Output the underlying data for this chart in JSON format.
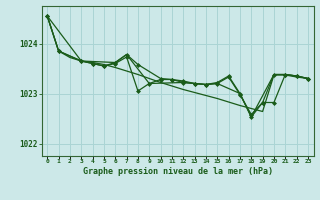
{
  "title": "Graphe pression niveau de la mer (hPa)",
  "bg_color": "#cce8e8",
  "grid_color": "#aad4d4",
  "line_color": "#1a5c1a",
  "marker_color": "#1a5c1a",
  "frame_color": "#336633",
  "xlim": [
    -0.5,
    23.5
  ],
  "ylim": [
    1021.75,
    1024.75
  ],
  "yticks": [
    1022,
    1023,
    1024
  ],
  "xtick_labels": [
    "0",
    "1",
    "2",
    "3",
    "4",
    "5",
    "6",
    "7",
    "8",
    "9",
    "10",
    "11",
    "12",
    "13",
    "14",
    "15",
    "16",
    "17",
    "18",
    "19",
    "20",
    "21",
    "22",
    "23"
  ],
  "series": {
    "line1_x": [
      0,
      1,
      2,
      3,
      4,
      5,
      6,
      7,
      8,
      9,
      10,
      11,
      12,
      13,
      14,
      15,
      16,
      17,
      18,
      19,
      20,
      21,
      22,
      23
    ],
    "line1_y": [
      1024.55,
      1023.85,
      1023.72,
      1023.65,
      1023.62,
      1023.58,
      1023.52,
      1023.45,
      1023.38,
      1023.3,
      1023.22,
      1023.15,
      1023.08,
      1023.02,
      1022.96,
      1022.9,
      1022.83,
      1022.76,
      1022.7,
      1022.64,
      1023.37,
      1023.37,
      1023.33,
      1023.3
    ],
    "line2_x": [
      0,
      1,
      3,
      4,
      5,
      6,
      7,
      8,
      9,
      10,
      11,
      12,
      13,
      14,
      15,
      16,
      17,
      18,
      19,
      20,
      21,
      22,
      23
    ],
    "line2_y": [
      1024.55,
      1023.85,
      1023.65,
      1023.6,
      1023.55,
      1023.6,
      1023.73,
      1023.05,
      1023.2,
      1023.28,
      1023.28,
      1023.22,
      1023.2,
      1023.18,
      1023.2,
      1023.33,
      1022.98,
      1022.58,
      1022.82,
      1022.82,
      1023.38,
      1023.35,
      1023.3
    ],
    "line3_x": [
      0,
      1,
      3,
      4,
      5,
      6,
      7,
      8,
      10,
      11,
      12,
      13,
      14,
      15,
      16,
      17,
      18,
      19,
      20,
      21,
      22,
      23
    ],
    "line3_y": [
      1024.55,
      1023.85,
      1023.65,
      1023.6,
      1023.55,
      1023.62,
      1023.78,
      1023.58,
      1023.3,
      1023.28,
      1023.25,
      1023.2,
      1023.18,
      1023.22,
      1023.35,
      1023.0,
      1022.53,
      1022.82,
      1023.38,
      1023.38,
      1023.35,
      1023.3
    ],
    "line4_x": [
      0,
      3,
      6,
      7,
      9,
      12,
      14,
      15,
      17,
      18,
      20,
      21,
      22,
      23
    ],
    "line4_y": [
      1024.55,
      1023.65,
      1023.62,
      1023.78,
      1023.2,
      1023.22,
      1023.18,
      1023.2,
      1023.0,
      1022.53,
      1023.38,
      1023.38,
      1023.35,
      1023.3
    ]
  }
}
